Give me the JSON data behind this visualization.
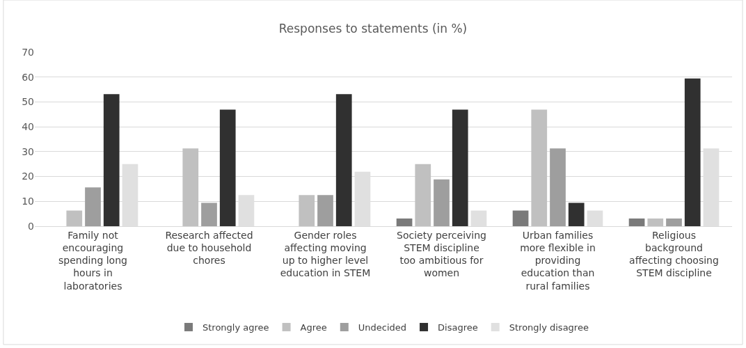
{
  "chart_data": {
    "type": "bar",
    "title": "Responses to statements (in %)",
    "categories": [
      "Family not encouraging spending long hours in laboratories",
      "Research affected due to household chores",
      "Gender roles affecting moving up to higher level education in STEM",
      "Society perceiving STEM discipline too ambitious for women",
      "Urban families more flexible in providing education than rural families",
      "Religious background affecting choosing STEM discipline"
    ],
    "series": [
      {
        "name": "Strongly agree",
        "color": "#7a7a7a",
        "values": [
          0,
          0,
          0,
          3.1,
          6.3,
          3.1
        ]
      },
      {
        "name": "Agree",
        "color": "#c0c0c0",
        "values": [
          6.3,
          31.3,
          12.5,
          25,
          46.9,
          3.1
        ]
      },
      {
        "name": "Undecided",
        "color": "#9e9e9e",
        "values": [
          15.6,
          9.4,
          12.5,
          18.8,
          31.3,
          3.1
        ]
      },
      {
        "name": "Disagree",
        "color": "#303030",
        "values": [
          53.1,
          46.9,
          53.1,
          46.9,
          9.4,
          59.4
        ]
      },
      {
        "name": "Strongly disagree",
        "color": "#e0e0e0",
        "values": [
          25,
          12.5,
          21.9,
          6.3,
          6.3,
          31.3
        ]
      }
    ],
    "ylim": [
      0,
      70
    ],
    "yticks": [
      0,
      10,
      20,
      30,
      40,
      50,
      60,
      70
    ],
    "grid": "y",
    "legend": "bottom"
  }
}
